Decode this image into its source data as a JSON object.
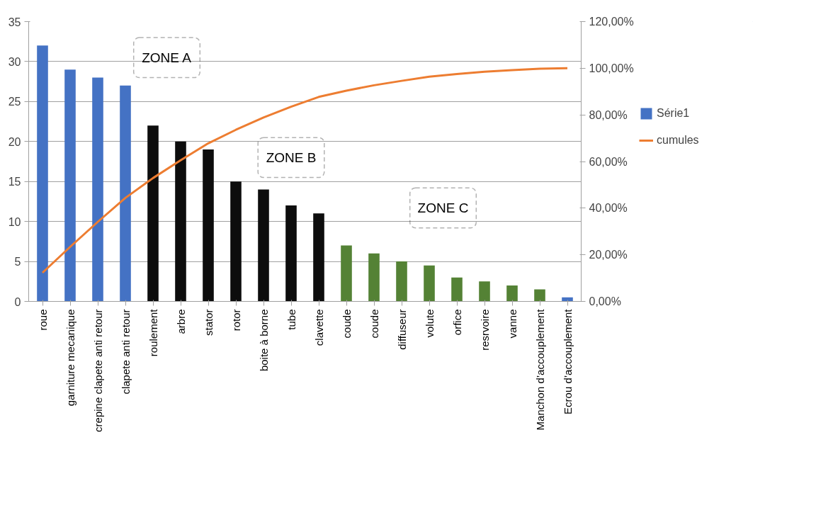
{
  "chart_data": {
    "type": "bar",
    "categories": [
      "roue",
      "garniture mecanique",
      "crepine clapete anti retour",
      "clapete anti retour",
      "roulement",
      "arbre",
      "stator",
      "rotor",
      "boite à borne",
      "tube",
      "clavette",
      "coude",
      "coude",
      "diffuseur",
      "volute",
      "orfice",
      "resrvoire",
      "vanne",
      "Manchon d’accouplement",
      "Ecrou d’accouplement"
    ],
    "series": [
      {
        "name": "Série1",
        "color": "#4472c4",
        "colors": [
          "#4472c4",
          "#4472c4",
          "#4472c4",
          "#4472c4",
          "#0d0d0d",
          "#0d0d0d",
          "#0d0d0d",
          "#0d0d0d",
          "#0d0d0d",
          "#0d0d0d",
          "#0d0d0d",
          "#548235",
          "#548235",
          "#548235",
          "#548235",
          "#548235",
          "#548235",
          "#548235",
          "#548235",
          "#4472c4"
        ],
        "values": [
          32,
          29,
          28,
          27,
          22,
          20,
          19,
          15,
          14,
          12,
          11,
          7,
          6,
          5,
          4.5,
          3,
          2.5,
          2,
          1.5,
          0.5
        ]
      },
      {
        "name": "cumules",
        "type": "line",
        "axis": "y2",
        "color": "#ed7d31",
        "values": [
          12.3,
          23.4,
          34.1,
          44.4,
          52.9,
          60.5,
          67.8,
          73.6,
          78.9,
          83.5,
          87.7,
          90.4,
          92.7,
          94.6,
          96.4,
          97.5,
          98.5,
          99.2,
          99.8,
          100
        ]
      }
    ],
    "ylim": [
      0,
      35
    ],
    "yticks": [
      0,
      5,
      10,
      15,
      20,
      25,
      30,
      35
    ],
    "y2lim": [
      0,
      120
    ],
    "y2ticks": [
      {
        "value": 0,
        "label": "0,00%"
      },
      {
        "value": 20,
        "label": "20,00%"
      },
      {
        "value": 40,
        "label": "40,00%"
      },
      {
        "value": 60,
        "label": "60,00%"
      },
      {
        "value": 80,
        "label": "80,00%"
      },
      {
        "value": 100,
        "label": "100,00%"
      },
      {
        "value": 120,
        "label": "120,00%"
      }
    ],
    "annotations": [
      "ZONE A",
      "ZONE B",
      "ZONE C"
    ],
    "grid": "y",
    "legend": "right",
    "marker": "none",
    "line_style": "solid"
  }
}
